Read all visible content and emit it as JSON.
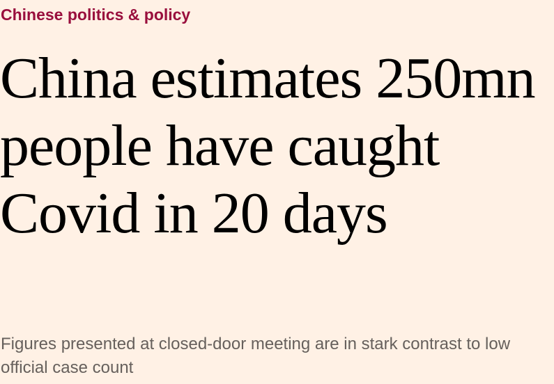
{
  "topic": {
    "label": "Chinese politics & policy",
    "color": "#990f3d"
  },
  "headline": "China estimates 250mn people have caught Covid in 20 days",
  "standfirst": "Figures presented at closed-door meeting are in stark contrast to low official case count",
  "colors": {
    "background": "#fff1e5",
    "headline": "#000000",
    "standfirst": "#66605c"
  }
}
